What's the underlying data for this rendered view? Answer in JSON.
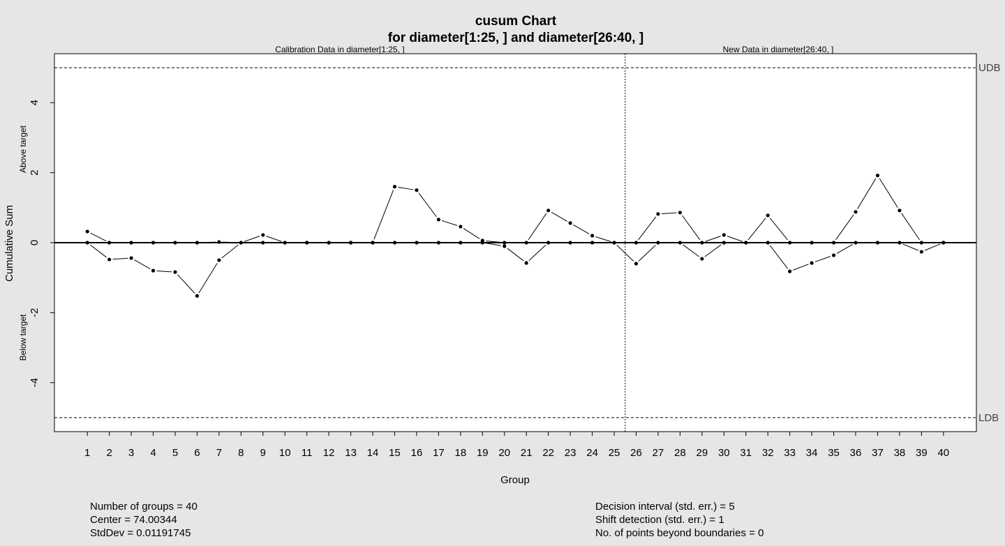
{
  "chart_data": {
    "type": "line",
    "title": "cusum Chart",
    "subtitle": "for diameter[1:25, ] and diameter[26:40, ]",
    "calibration_label": "Calibration Data in diameter[1:25, ]",
    "new_data_label": "New Data in diameter[26:40, ]",
    "xlabel": "Group",
    "ylabel": "Cumulative Sum",
    "ylabel_above": "Above target",
    "ylabel_below": "Below target",
    "x": [
      1,
      2,
      3,
      4,
      5,
      6,
      7,
      8,
      9,
      10,
      11,
      12,
      13,
      14,
      15,
      16,
      17,
      18,
      19,
      20,
      21,
      22,
      23,
      24,
      25,
      26,
      27,
      28,
      29,
      30,
      31,
      32,
      33,
      34,
      35,
      36,
      37,
      38,
      39,
      40
    ],
    "x_tick_labels": [
      "1",
      "2",
      "3",
      "4",
      "5",
      "6",
      "7",
      "8",
      "9",
      "10",
      "11",
      "12",
      "13",
      "14",
      "15",
      "16",
      "17",
      "18",
      "19",
      "20",
      "21",
      "22",
      "23",
      "24",
      "25",
      "26",
      "27",
      "28",
      "29",
      "30",
      "31",
      "32",
      "33",
      "34",
      "35",
      "36",
      "37",
      "38",
      "39",
      "40"
    ],
    "y_ticks": [
      -4,
      -2,
      0,
      2,
      4
    ],
    "y_tick_labels": [
      "-4",
      "-2",
      "0",
      "2",
      "4"
    ],
    "ylim": [
      -5.4,
      5.4
    ],
    "xlim": [
      -0.5,
      41.5
    ],
    "center_line": 0,
    "calibration_end": 25.5,
    "series": [
      {
        "values": [
          0.32,
          0,
          0,
          0,
          0,
          0,
          0.02,
          0,
          0.22,
          0,
          0,
          0,
          0,
          0,
          1.6,
          1.5,
          0.66,
          0.46,
          0.06,
          0,
          0,
          0.92,
          0.56,
          0.2,
          0,
          0,
          0.82,
          0.86,
          0,
          0.22,
          0,
          0.78,
          0,
          0,
          0,
          0.88,
          1.92,
          0.92,
          0,
          0
        ]
      },
      {
        "values": [
          0,
          -0.48,
          -0.44,
          -0.8,
          -0.84,
          -1.52,
          -0.5,
          0,
          0,
          0,
          0,
          0,
          0,
          0,
          0,
          0,
          0,
          0,
          0,
          -0.1,
          -0.58,
          0,
          0,
          0,
          0,
          -0.6,
          0,
          0,
          -0.46,
          0,
          0,
          0,
          -0.82,
          -0.58,
          -0.36,
          0,
          0,
          0,
          -0.26,
          0
        ]
      }
    ],
    "limits": [
      {
        "label": "UDB",
        "value": 5
      },
      {
        "label": "LDB",
        "value": -5
      }
    ]
  },
  "stats_left": [
    "Number of groups = 40",
    "Center = 74.00344",
    "StdDev = 0.01191745"
  ],
  "stats_right": [
    "Decision interval (std. err.) = 5",
    "Shift detection (std. err.) = 1",
    "No. of points beyond boundaries = 0"
  ]
}
